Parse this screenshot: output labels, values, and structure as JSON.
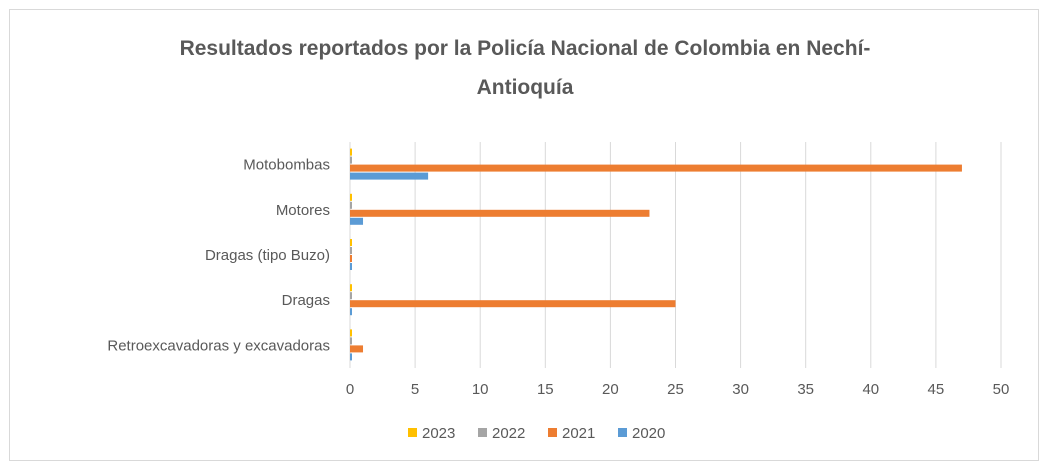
{
  "chart_data": {
    "type": "bar",
    "orientation": "horizontal",
    "title_lines": [
      "Resultados reportados por la Policía Nacional de Colombia en Nechí-",
      "Antioquía"
    ],
    "categories": [
      "Motobombas",
      "Motores",
      "Dragas (tipo Buzo)",
      "Dragas",
      "Retroexcavadoras y excavadoras"
    ],
    "series": [
      {
        "name": "2023",
        "color": "#ffc000",
        "values": [
          0,
          0,
          0,
          0,
          0
        ]
      },
      {
        "name": "2022",
        "color": "#a5a5a5",
        "values": [
          0,
          0,
          0,
          0,
          0
        ]
      },
      {
        "name": "2021",
        "color": "#ed7d31",
        "values": [
          47,
          23,
          0,
          25,
          1
        ]
      },
      {
        "name": "2020",
        "color": "#5b9bd5",
        "values": [
          6,
          1,
          0,
          0,
          0
        ]
      }
    ],
    "xlim": [
      0,
      50
    ],
    "x_ticks": [
      "0",
      "5",
      "10",
      "15",
      "20",
      "25",
      "30",
      "35",
      "40",
      "45",
      "50"
    ],
    "grid": true,
    "legend_position": "bottom"
  }
}
